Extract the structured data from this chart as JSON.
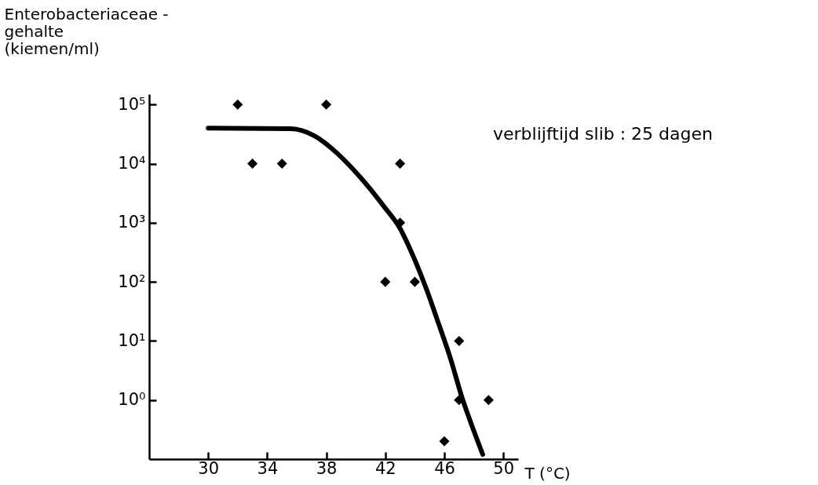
{
  "chart_data": {
    "type": "scatter",
    "xlabel": "T (°C)",
    "ylabel": "Enterobacteriaceae -\ngehalte\n(kiemen/ml)",
    "annotations": [
      "verblijftijd slib : 25 dagen"
    ],
    "log": "y",
    "grid": false,
    "xlim": [
      26,
      51
    ],
    "xticks": [
      30,
      34,
      38,
      42,
      46,
      50
    ],
    "ylim": [
      0.1,
      150000
    ],
    "yticks": [
      {
        "value": 1,
        "label": "10⁰"
      },
      {
        "value": 10,
        "label": "10¹"
      },
      {
        "value": 100,
        "label": "10²"
      },
      {
        "value": 1000,
        "label": "10³"
      },
      {
        "value": 10000,
        "label": "10⁴"
      },
      {
        "value": 100000,
        "label": "10⁵"
      }
    ],
    "series": [
      {
        "marker": "diamond",
        "color": "#000000",
        "x": [
          32,
          33,
          35,
          38,
          43,
          43,
          42,
          44,
          47,
          47,
          49,
          46
        ],
        "values": [
          100000,
          10000,
          10000,
          100000,
          10000,
          1000,
          100,
          100,
          10,
          1,
          1,
          0.2
        ]
      },
      {
        "type": "line",
        "line_style": "solid",
        "color": "#000000",
        "x": [
          30,
          35.6,
          37.2,
          38.8,
          40.3,
          41.9,
          43,
          44,
          44.8,
          45.6,
          46.4,
          47.2,
          48,
          48.6
        ],
        "values": [
          40000,
          39000,
          29500,
          14500,
          5900,
          1900,
          800,
          235,
          74,
          20,
          5.2,
          1.1,
          0.3,
          0.12
        ]
      }
    ]
  }
}
